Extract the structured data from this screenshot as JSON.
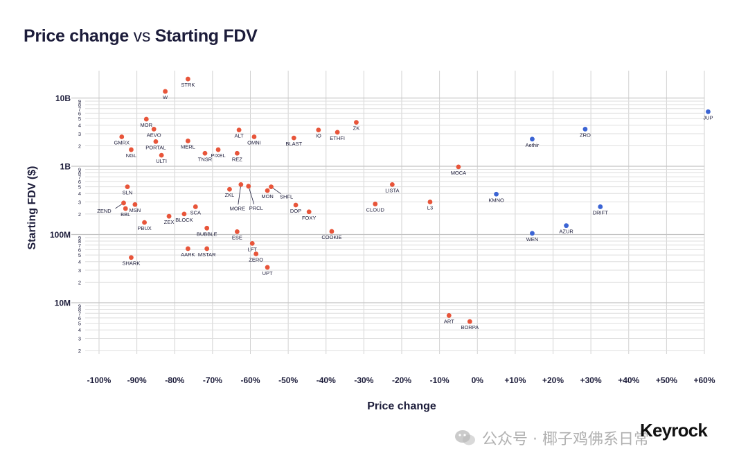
{
  "title": {
    "part1": "Price change",
    "vs": " vs ",
    "part2": "Starting FDV"
  },
  "brand": "Keyrock",
  "watermark": "公众号 · 椰子鸡佛系日常",
  "colors": {
    "negative": "#e8553a",
    "positive": "#3b64d4",
    "grid": "#d0d0d0",
    "text": "#1c1c3a"
  },
  "chart_data": {
    "type": "scatter",
    "xlabel": "Price change",
    "ylabel": "Starting FDV ($)",
    "xlim": [
      -100,
      60
    ],
    "ylim": [
      2000000,
      30000000000
    ],
    "yscale": "log",
    "grid": true,
    "x_ticks": [
      {
        "v": -100,
        "label": "-100%"
      },
      {
        "v": -90,
        "label": "-90%"
      },
      {
        "v": -80,
        "label": "-80%"
      },
      {
        "v": -70,
        "label": "-70%"
      },
      {
        "v": -60,
        "label": "-60%"
      },
      {
        "v": -50,
        "label": "-50%"
      },
      {
        "v": -40,
        "label": "-40%"
      },
      {
        "v": -30,
        "label": "-30%"
      },
      {
        "v": -20,
        "label": "-20%"
      },
      {
        "v": -10,
        "label": "-10%"
      },
      {
        "v": 0,
        "label": "0%"
      },
      {
        "v": 10,
        "label": "+10%"
      },
      {
        "v": 20,
        "label": "+20%"
      },
      {
        "v": 30,
        "label": "+30%"
      },
      {
        "v": 40,
        "label": "+40%"
      },
      {
        "v": 50,
        "label": "+50%"
      },
      {
        "v": 60,
        "label": "+60%"
      }
    ],
    "y_major": [
      {
        "v": 10000000,
        "label": "10M"
      },
      {
        "v": 100000000,
        "label": "100M"
      },
      {
        "v": 1000000000,
        "label": "1B"
      },
      {
        "v": 10000000000,
        "label": "10B"
      }
    ],
    "y_minor_labels": [
      "2",
      "3",
      "4",
      "5",
      "6",
      "7",
      "8",
      "9"
    ],
    "points": [
      {
        "label": "STRK",
        "x": -76.5,
        "y": 19000000000
      },
      {
        "label": "W",
        "x": -82.5,
        "y": 12500000000
      },
      {
        "label": "MOR",
        "x": -87.5,
        "y": 4900000000
      },
      {
        "label": "AEVO",
        "x": -85.5,
        "y": 3500000000
      },
      {
        "label": "GMRX",
        "x": -94,
        "y": 2700000000
      },
      {
        "label": "PORTAL",
        "x": -85,
        "y": 2300000000
      },
      {
        "label": "NGL",
        "x": -91.5,
        "y": 1750000000
      },
      {
        "label": "ULTI",
        "x": -83.5,
        "y": 1450000000
      },
      {
        "label": "MERL",
        "x": -76.5,
        "y": 2350000000
      },
      {
        "label": "TNSR",
        "x": -72,
        "y": 1550000000
      },
      {
        "label": "PIXEL",
        "x": -68.5,
        "y": 1750000000
      },
      {
        "label": "ALT",
        "x": -63,
        "y": 3400000000
      },
      {
        "label": "REZ",
        "x": -63.5,
        "y": 1550000000
      },
      {
        "label": "OMNI",
        "x": -59,
        "y": 2700000000
      },
      {
        "label": "BLAST",
        "x": -48.5,
        "y": 2600000000
      },
      {
        "label": "IO",
        "x": -42,
        "y": 3400000000
      },
      {
        "label": "ETHFI",
        "x": -37,
        "y": 3150000000
      },
      {
        "label": "ZK",
        "x": -32,
        "y": 4400000000
      },
      {
        "label": "MOCA",
        "x": -5,
        "y": 980000000
      },
      {
        "label": "LISTA",
        "x": -22.5,
        "y": 540000000
      },
      {
        "label": "SLN",
        "x": -92.5,
        "y": 500000000
      },
      {
        "label": "ZEND",
        "x": -93.5,
        "y": 290000000
      },
      {
        "label": "MSN",
        "x": -90.5,
        "y": 275000000
      },
      {
        "label": "BBL",
        "x": -93,
        "y": 240000000
      },
      {
        "label": "PBUX",
        "x": -88,
        "y": 150000000
      },
      {
        "label": "ZEX",
        "x": -81.5,
        "y": 185000000
      },
      {
        "label": "BLOCK",
        "x": -77.5,
        "y": 200000000
      },
      {
        "label": "SCA",
        "x": -74.5,
        "y": 255000000
      },
      {
        "label": "BUBBLE",
        "x": -71.5,
        "y": 124000000
      },
      {
        "label": "ZKL",
        "x": -65.5,
        "y": 460000000
      },
      {
        "label": "MORE",
        "x": -62.5,
        "y": 540000000
      },
      {
        "label": "PRCL",
        "x": -60.5,
        "y": 510000000
      },
      {
        "label": "MON",
        "x": -55.5,
        "y": 440000000
      },
      {
        "label": "SHFL",
        "x": -54.5,
        "y": 500000000
      },
      {
        "label": "DOP",
        "x": -48,
        "y": 270000000
      },
      {
        "label": "FOXY",
        "x": -44.5,
        "y": 215000000
      },
      {
        "label": "CLOUD",
        "x": -27,
        "y": 280000000
      },
      {
        "label": "L3",
        "x": -12.5,
        "y": 300000000
      },
      {
        "label": "COOKIE",
        "x": -38.5,
        "y": 111000000
      },
      {
        "label": "ESE",
        "x": -63.5,
        "y": 110000000
      },
      {
        "label": "LFT",
        "x": -59.5,
        "y": 74000000
      },
      {
        "label": "AARK",
        "x": -76.5,
        "y": 62000000
      },
      {
        "label": "MSTAR",
        "x": -71.5,
        "y": 62000000
      },
      {
        "label": "ZERO",
        "x": -58.5,
        "y": 52000000
      },
      {
        "label": "SHARK",
        "x": -91.5,
        "y": 46000000
      },
      {
        "label": "UPT",
        "x": -55.5,
        "y": 33000000
      },
      {
        "label": "ART",
        "x": -7.5,
        "y": 6500000
      },
      {
        "label": "BORPA",
        "x": -2,
        "y": 5300000
      },
      {
        "label": "JUP",
        "x": 61,
        "y": 6300000000
      },
      {
        "label": "ZRO",
        "x": 28.5,
        "y": 3500000000
      },
      {
        "label": "Aethir",
        "x": 14.5,
        "y": 2500000000
      },
      {
        "label": "KMNO",
        "x": 5,
        "y": 390000000
      },
      {
        "label": "DRIFT",
        "x": 32.5,
        "y": 255000000
      },
      {
        "label": "AZUR",
        "x": 23.5,
        "y": 135000000
      },
      {
        "label": "WEN",
        "x": 14.5,
        "y": 104000000
      }
    ]
  }
}
